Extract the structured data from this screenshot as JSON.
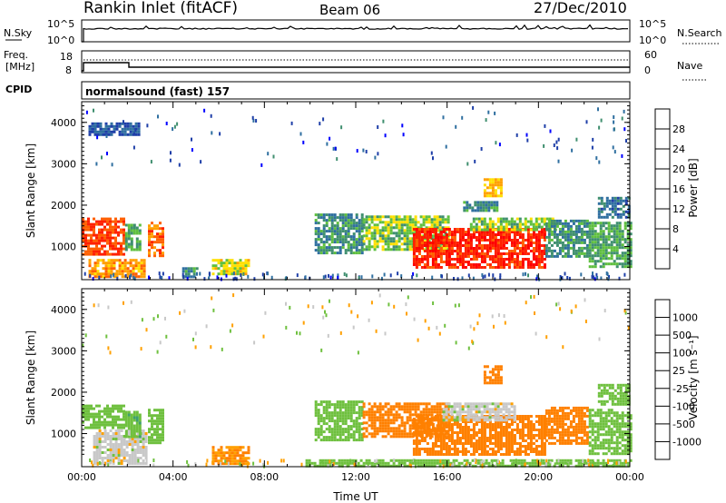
{
  "header": {
    "station": "Rankin Inlet (fitACF)",
    "beam": "Beam 06",
    "date": "27/Dec/2010"
  },
  "noise_panel": {
    "left_label": "N.Sky",
    "left_ticks": [
      "10^5",
      "10^0"
    ],
    "right_label": "N.Search",
    "right_ticks": [
      "10^5",
      "10^0"
    ]
  },
  "freq_panel": {
    "left_label_1": "Freq.",
    "left_label_2": "[MHz]",
    "left_ticks": [
      "18",
      "8"
    ],
    "right_label": "Nave",
    "right_ticks": [
      "60",
      "0"
    ]
  },
  "cpid_panel": {
    "label": "CPID",
    "text": "normalsound (fast) 157"
  },
  "power_colorbar": {
    "label": "Power [dB]",
    "ticks": [
      "28",
      "24",
      "20",
      "16",
      "12",
      "8",
      "4"
    ],
    "colors": [
      "#0000ff",
      "#1f3fa8",
      "#2f6fa0",
      "#3f8f6f",
      "#5fbf3f",
      "#ffe000",
      "#ffa000",
      "#ff6000",
      "#ff2000",
      "#ff0000"
    ]
  },
  "velocity_colorbar": {
    "label": "Velocity [m s⁻¹]",
    "ticks": [
      "1000",
      "500",
      "100",
      "25",
      "-25",
      "-100",
      "-500",
      "-1000"
    ],
    "colors": [
      "#1f3fbf",
      "#2f6fa0",
      "#3f9f6f",
      "#6fc03f",
      "#c8c8c8",
      "#ffa000",
      "#ff8000",
      "#ff5000",
      "#ff0000"
    ]
  },
  "chart_data": [
    {
      "type": "heatmap",
      "name": "power",
      "ylabel": "Slant Range [km]",
      "yticks": [
        "4000",
        "3000",
        "2000",
        "1000"
      ],
      "ylim": [
        200,
        4500
      ],
      "xlim": [
        0,
        24
      ],
      "regions": [
        {
          "t0": 0.0,
          "t1": 1.9,
          "r0": 800,
          "r1": 1700,
          "v": 26
        },
        {
          "t0": 0.3,
          "t1": 2.8,
          "r0": 300,
          "r1": 700,
          "v": 22
        },
        {
          "t0": 1.9,
          "t1": 2.5,
          "r0": 950,
          "r1": 1550,
          "v": 14
        },
        {
          "t0": 2.9,
          "t1": 3.5,
          "r0": 750,
          "r1": 1600,
          "v": 24
        },
        {
          "t0": 5.7,
          "t1": 7.3,
          "r0": 350,
          "r1": 700,
          "v": 18
        },
        {
          "t0": 4.4,
          "t1": 5.1,
          "r0": 300,
          "r1": 500,
          "v": 12
        },
        {
          "t0": 10.2,
          "t1": 12.3,
          "r0": 850,
          "r1": 1800,
          "v": 12
        },
        {
          "t0": 12.3,
          "t1": 16.0,
          "r0": 900,
          "r1": 1750,
          "v": 16
        },
        {
          "t0": 14.5,
          "t1": 20.3,
          "r0": 500,
          "r1": 1450,
          "v": 28
        },
        {
          "t0": 17.0,
          "t1": 20.7,
          "r0": 1400,
          "r1": 1700,
          "v": 16
        },
        {
          "t0": 16.7,
          "t1": 18.2,
          "r0": 1850,
          "r1": 2100,
          "v": 12
        },
        {
          "t0": 17.6,
          "t1": 18.4,
          "r0": 2250,
          "r1": 2650,
          "v": 20
        },
        {
          "t0": 20.3,
          "t1": 22.2,
          "r0": 750,
          "r1": 1650,
          "v": 12
        },
        {
          "t0": 22.2,
          "t1": 24.0,
          "r0": 500,
          "r1": 1600,
          "v": 14
        },
        {
          "t0": 22.6,
          "t1": 24.0,
          "r0": 1700,
          "r1": 2200,
          "v": 10
        },
        {
          "t0": 0.3,
          "t1": 2.5,
          "r0": 3700,
          "r1": 4000,
          "v": 8
        }
      ]
    },
    {
      "type": "heatmap",
      "name": "velocity",
      "ylabel": "Slant Range [km]",
      "xlabel": "Time UT",
      "yticks": [
        "4000",
        "3000",
        "2000",
        "1000"
      ],
      "xticks": [
        "00:00",
        "04:00",
        "08:00",
        "12:00",
        "16:00",
        "20:00",
        "00:00"
      ],
      "ylim": [
        200,
        4500
      ],
      "xlim": [
        0,
        24
      ],
      "regions": [
        {
          "t0": 0.0,
          "t1": 1.9,
          "r0": 1150,
          "r1": 1700,
          "v": 60
        },
        {
          "t0": 0.5,
          "t1": 2.8,
          "r0": 300,
          "r1": 1100,
          "v": 0
        },
        {
          "t0": 1.9,
          "t1": 2.5,
          "r0": 950,
          "r1": 1550,
          "v": 80
        },
        {
          "t0": 2.9,
          "t1": 3.5,
          "r0": 750,
          "r1": 1600,
          "v": 60
        },
        {
          "t0": 5.7,
          "t1": 7.3,
          "r0": 300,
          "r1": 700,
          "v": -100
        },
        {
          "t0": 10.2,
          "t1": 12.3,
          "r0": 850,
          "r1": 1800,
          "v": 60
        },
        {
          "t0": 12.3,
          "t1": 16.0,
          "r0": 900,
          "r1": 1750,
          "v": -200
        },
        {
          "t0": 14.5,
          "t1": 20.3,
          "r0": 500,
          "r1": 1450,
          "v": -300
        },
        {
          "t0": 15.8,
          "t1": 19.0,
          "r0": 1350,
          "r1": 1750,
          "v": 0
        },
        {
          "t0": 17.6,
          "t1": 18.4,
          "r0": 2250,
          "r1": 2650,
          "v": -300
        },
        {
          "t0": 20.3,
          "t1": 22.2,
          "r0": 750,
          "r1": 1650,
          "v": -200
        },
        {
          "t0": 22.2,
          "t1": 24.0,
          "r0": 500,
          "r1": 1600,
          "v": 60
        },
        {
          "t0": 22.6,
          "t1": 24.0,
          "r0": 1700,
          "r1": 2200,
          "v": 60
        },
        {
          "t0": 9.8,
          "t1": 24.0,
          "r0": 220,
          "r1": 380,
          "v": 60
        }
      ]
    }
  ]
}
